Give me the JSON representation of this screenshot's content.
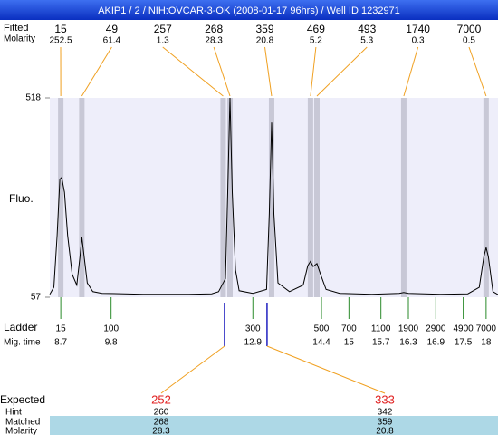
{
  "title": "AKIP1 / 2 / NIH:OVCAR-3-OK (2008-01-17 96hrs) / Well ID 1232971",
  "chart_data": {
    "type": "electropherogram",
    "size_label": "Fitted",
    "molarity_label": "Molarity",
    "ylabel": "Fluo.",
    "ylim": [
      57,
      518
    ],
    "yticks": [
      57,
      518
    ],
    "xlim": [
      8.46,
      18.26
    ],
    "peaks": {
      "sizes": [
        15,
        49,
        257,
        268,
        359,
        469,
        493,
        1740,
        7000
      ],
      "molarity": [
        252.5,
        61.4,
        1.3,
        28.3,
        20.8,
        5.2,
        5.3,
        0.3,
        0.5
      ],
      "times": [
        8.7,
        9.16,
        12.25,
        12.4,
        13.31,
        14.16,
        14.3,
        16.2,
        18.0
      ]
    },
    "trace": {
      "color": "#000000",
      "x": [
        8.46,
        8.55,
        8.62,
        8.68,
        8.72,
        8.78,
        8.85,
        8.95,
        9.05,
        9.12,
        9.16,
        9.2,
        9.28,
        9.4,
        9.6,
        10.5,
        11.5,
        12.0,
        12.15,
        12.25,
        12.3,
        12.35,
        12.4,
        12.45,
        12.52,
        12.6,
        12.9,
        13.2,
        13.26,
        13.31,
        13.36,
        13.45,
        13.7,
        14.0,
        14.1,
        14.16,
        14.22,
        14.3,
        14.38,
        14.5,
        14.8,
        15.5,
        16.1,
        16.2,
        16.3,
        17.0,
        17.6,
        17.85,
        17.95,
        18.0,
        18.05,
        18.15,
        18.26
      ],
      "values": [
        64,
        80,
        200,
        330,
        334,
        300,
        200,
        110,
        85,
        150,
        196,
        160,
        90,
        70,
        66,
        64,
        64,
        65,
        70,
        90,
        100,
        300,
        518,
        300,
        120,
        72,
        66,
        75,
        250,
        461,
        250,
        90,
        70,
        85,
        130,
        140,
        128,
        135,
        110,
        75,
        66,
        64,
        66,
        68,
        66,
        64,
        65,
        80,
        150,
        172,
        150,
        70,
        63
      ]
    },
    "ladder": {
      "label": "Ladder",
      "time_label": "Mig. time",
      "sizes": [
        15,
        100,
        300,
        500,
        700,
        1100,
        1900,
        2900,
        4900,
        7000
      ],
      "times": [
        8.7,
        9.8,
        12.9,
        14.4,
        15,
        15.7,
        16.3,
        16.9,
        17.5,
        18
      ]
    },
    "expected": {
      "labels": [
        "Expected",
        "Hint",
        "Matched",
        "Molarity"
      ],
      "expected": [
        252,
        333
      ],
      "hint": [
        260,
        342
      ],
      "matched": [
        268,
        359
      ],
      "molarity": [
        28.3,
        20.8
      ],
      "hint_times": [
        12.28,
        13.21
      ]
    }
  }
}
